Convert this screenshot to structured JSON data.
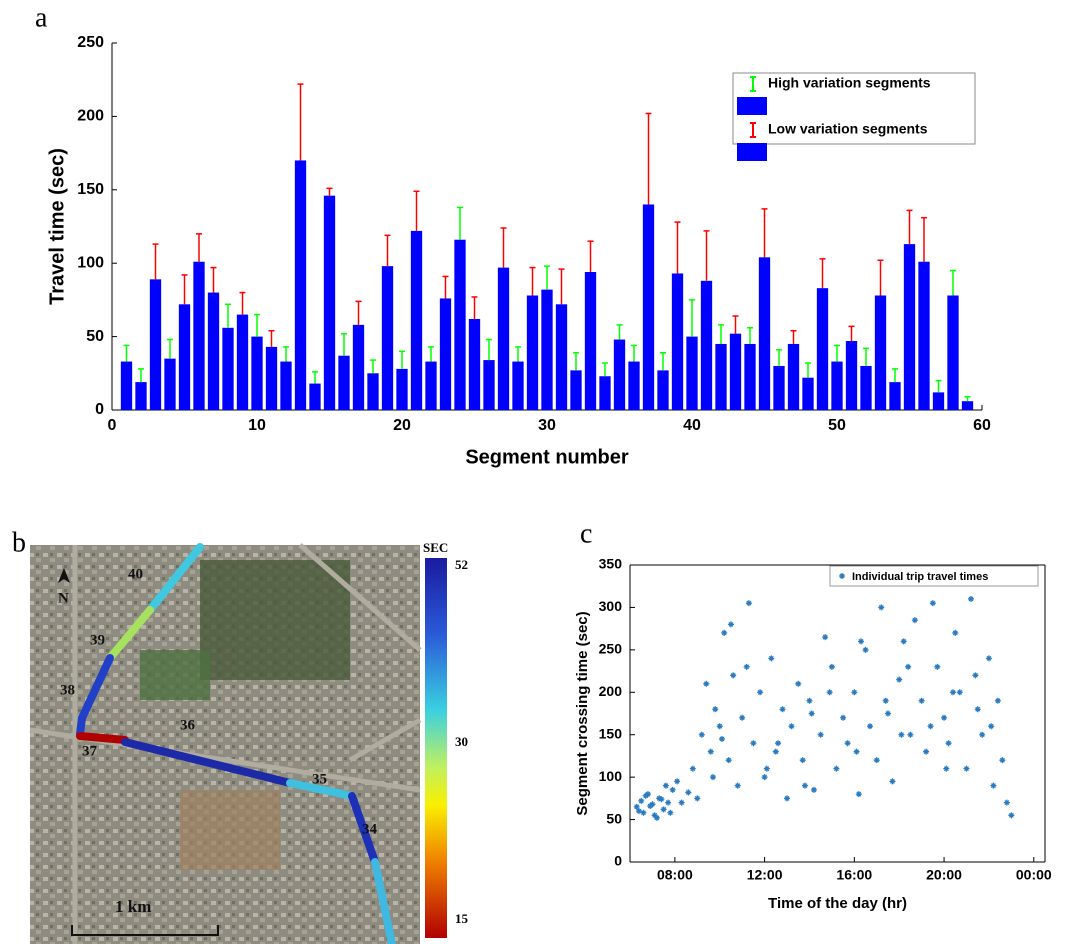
{
  "chart_data": [
    {
      "type": "errorbar",
      "panel_label": "a",
      "x_label": "Segment number",
      "y_label": "Travel time (sec)",
      "xlim": [
        0,
        60
      ],
      "xticks": [
        0,
        10,
        20,
        30,
        40,
        50,
        60
      ],
      "ylim": [
        0,
        250
      ],
      "yticks": [
        0,
        50,
        100,
        150,
        200,
        250
      ],
      "bar_color": "#0000ff",
      "legend": "upper right",
      "series": [
        {
          "name": "High variation segments",
          "color": "#00ff00",
          "x": [
            1,
            2,
            4,
            8,
            10,
            12,
            14,
            16,
            18,
            20,
            22,
            24,
            26,
            28,
            30,
            32,
            34,
            35,
            36,
            38,
            40,
            42,
            44,
            46,
            48,
            50,
            52,
            54,
            57,
            58,
            59
          ],
          "values": [
            33,
            19,
            35,
            56,
            50,
            33,
            18,
            37,
            25,
            28,
            33,
            116,
            34,
            33,
            82,
            27,
            23,
            48,
            33,
            27,
            50,
            45,
            45,
            30,
            22,
            33,
            30,
            19,
            12,
            78,
            6
          ],
          "errors": [
            11,
            9,
            13,
            16,
            15,
            10,
            8,
            15,
            9,
            12,
            10,
            22,
            14,
            10,
            16,
            12,
            9,
            10,
            11,
            12,
            25,
            13,
            11,
            11,
            10,
            11,
            12,
            9,
            8,
            17,
            3
          ]
        },
        {
          "name": "Low variation segments",
          "color": "#ff0000",
          "x": [
            3,
            5,
            6,
            7,
            9,
            11,
            13,
            15,
            17,
            19,
            21,
            23,
            25,
            27,
            29,
            31,
            33,
            37,
            39,
            41,
            43,
            45,
            47,
            49,
            51,
            53,
            55,
            56
          ],
          "values": [
            89,
            72,
            101,
            80,
            65,
            43,
            170,
            146,
            58,
            98,
            122,
            76,
            62,
            97,
            78,
            72,
            94,
            140,
            93,
            88,
            52,
            104,
            45,
            83,
            47,
            78,
            113,
            101
          ],
          "errors": [
            24,
            20,
            19,
            17,
            15,
            11,
            52,
            5,
            16,
            21,
            27,
            15,
            15,
            27,
            19,
            24,
            21,
            62,
            35,
            34,
            12,
            33,
            9,
            20,
            10,
            24,
            23,
            30
          ]
        }
      ]
    },
    {
      "type": "scatter",
      "panel_label": "c",
      "x_label": "Time of the day (hr)",
      "y_label": "Segment crossing time (sec)",
      "xlim": [
        6,
        24.5
      ],
      "xticks": [
        {
          "value": 8,
          "label": "08:00"
        },
        {
          "value": 12,
          "label": "12:00"
        },
        {
          "value": 16,
          "label": "16:00"
        },
        {
          "value": 20,
          "label": "20:00"
        },
        {
          "value": 24,
          "label": "00:00"
        }
      ],
      "ylim": [
        0,
        350
      ],
      "yticks": [
        0,
        50,
        100,
        150,
        200,
        250,
        300,
        350
      ],
      "legend": "upper right",
      "x": [
        6.3,
        6.5,
        6.6,
        6.8,
        7.0,
        7.1,
        7.3,
        7.5,
        7.7,
        7.9,
        6.4,
        6.7,
        6.9,
        7.2,
        7.4,
        7.6,
        7.8,
        8.1,
        8.3,
        8.6,
        8.8,
        9.0,
        9.2,
        9.4,
        9.6,
        9.8,
        10.0,
        10.2,
        10.4,
        10.6,
        10.8,
        11.0,
        11.3,
        11.5,
        11.8,
        12.0,
        12.3,
        12.5,
        12.8,
        13.0,
        13.2,
        13.5,
        13.7,
        14.0,
        14.2,
        14.5,
        14.7,
        15.0,
        15.2,
        15.5,
        15.7,
        16.0,
        16.2,
        16.5,
        16.7,
        17.0,
        17.2,
        17.5,
        17.7,
        18.0,
        18.2,
        18.5,
        18.7,
        19.0,
        19.2,
        19.5,
        19.7,
        20.0,
        20.2,
        20.5,
        20.7,
        21.0,
        21.2,
        21.5,
        21.7,
        22.0,
        22.2,
        22.4,
        22.6,
        22.8,
        23.0,
        9.7,
        10.5,
        11.2,
        12.6,
        13.8,
        14.9,
        16.3,
        17.4,
        18.4,
        19.4,
        20.4,
        21.4,
        10.1,
        12.1,
        14.1,
        16.1,
        18.1,
        20.1,
        22.1
      ],
      "series": [
        {
          "name": "Individual trip travel times",
          "color": "#2b7bc0",
          "values": [
            65,
            72,
            58,
            80,
            68,
            55,
            75,
            62,
            70,
            85,
            60,
            78,
            66,
            52,
            74,
            90,
            58,
            95,
            70,
            82,
            110,
            75,
            150,
            210,
            130,
            180,
            160,
            270,
            120,
            220,
            90,
            170,
            305,
            140,
            200,
            100,
            240,
            130,
            180,
            75,
            160,
            210,
            120,
            190,
            85,
            150,
            265,
            230,
            110,
            170,
            140,
            200,
            80,
            250,
            160,
            120,
            300,
            175,
            95,
            215,
            260,
            150,
            285,
            190,
            130,
            305,
            230,
            170,
            140,
            270,
            200,
            110,
            310,
            180,
            150,
            240,
            90,
            190,
            120,
            70,
            55,
            100,
            280,
            230,
            140,
            90,
            200,
            260,
            190,
            230,
            160,
            200,
            220,
            145,
            110,
            175,
            130,
            150,
            110,
            160
          ]
        }
      ]
    }
  ],
  "map": {
    "panel_label": "b",
    "north": "N",
    "scale": "1 km",
    "segments": [
      "40",
      "39",
      "38",
      "37",
      "36",
      "35",
      "34"
    ],
    "colorbar": {
      "title": "SEC",
      "labels": [
        "52",
        "30",
        "15"
      ]
    }
  }
}
